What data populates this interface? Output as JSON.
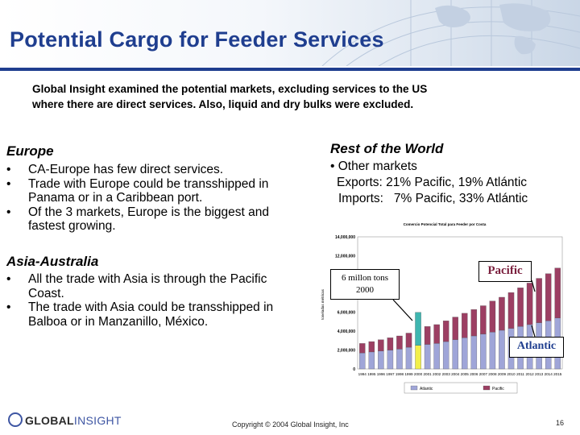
{
  "title": "Potential Cargo for Feeder Services",
  "intro": {
    "line1": "Global Insight examined the potential markets, excluding services to the US",
    "line2": "where there are direct services.  Also, liquid and dry bulks were excluded."
  },
  "europe": {
    "heading": "Europe",
    "bullet_glyph": "•",
    "items": [
      [
        "CA-Europe has few direct services."
      ],
      [
        "Trade with Europe could be transshipped in",
        "Panama or in a Caribbean port."
      ],
      [
        "Of the 3 markets, Europe is the biggest and",
        "fastest growing."
      ]
    ]
  },
  "asia": {
    "heading": "Asia-Australia",
    "items": [
      [
        "All the trade with Asia is through the Pacific",
        "Coast."
      ],
      [
        "The trade with Asia could be transshipped in",
        "Balboa or in Manzanillo, México."
      ]
    ]
  },
  "rest_of_world": {
    "heading": "Rest of the World",
    "line1": "• Other markets",
    "line2": "Exports: 21% Pacific, 19% Atlántic",
    "line3": "Imports:   7% Pacific, 33% Atlántic"
  },
  "callouts": {
    "million_line1": "6 millon tons",
    "million_line2": "2000",
    "pacific": "Pacific",
    "atlantic": "Atlantic"
  },
  "chart_data": {
    "type": "bar",
    "stacked": true,
    "title": "Comercio Potencial Total para Feeder por Costa",
    "categories": [
      "1994",
      "1995",
      "1996",
      "1997",
      "1998",
      "1999",
      "2000",
      "2001",
      "2002",
      "2003",
      "2004",
      "2005",
      "2006",
      "2007",
      "2008",
      "2009",
      "2010",
      "2011",
      "2012",
      "2013",
      "2014",
      "2015"
    ],
    "series": [
      {
        "name": "Atlantic",
        "color": "#9fa5d8",
        "values": [
          1700000,
          1800000,
          1900000,
          2000000,
          2100000,
          2300000,
          2500000,
          2600000,
          2700000,
          2900000,
          3100000,
          3300000,
          3500000,
          3700000,
          3900000,
          4100000,
          4300000,
          4500000,
          4700000,
          4900000,
          5100000,
          5400000
        ]
      },
      {
        "name": "Pacific",
        "color": "#9c3f63",
        "values": [
          1000000,
          1100000,
          1200000,
          1300000,
          1400000,
          1500000,
          3500000,
          1900000,
          2000000,
          2200000,
          2400000,
          2600000,
          2800000,
          3000000,
          3300000,
          3500000,
          3800000,
          4100000,
          4400000,
          4700000,
          5000000,
          5300000
        ]
      }
    ],
    "highlight": {
      "category": "2000",
      "colors": [
        "#f2ef4a",
        "#3fb6b0"
      ]
    },
    "ylabel": "toneladas métricas",
    "ylim": [
      0,
      14000000
    ],
    "yticks": [
      "0",
      "2,000,000",
      "4,000,000",
      "6,000,000",
      "8,000,000",
      "10,000,000",
      "12,000,000",
      "14,000,000"
    ],
    "legend": [
      "Atlantic",
      "Pacific"
    ],
    "legend_position": "bottom",
    "grid": false
  },
  "footer": {
    "logo_bold": "GLOBAL",
    "logo_light": "INSIGHT",
    "copyright": "Copyright © 2004 Global Insight, Inc",
    "page_number": "16"
  }
}
